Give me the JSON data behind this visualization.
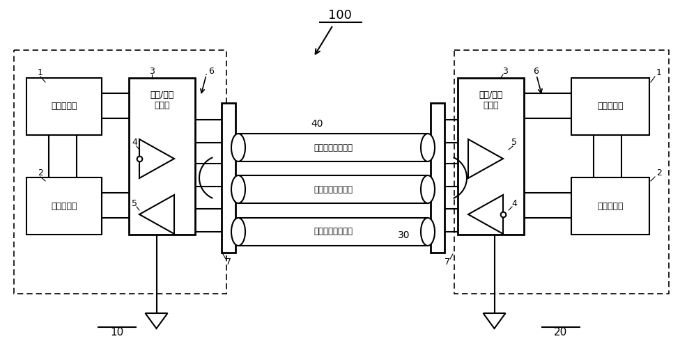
{
  "title": "100",
  "bg_color": "#ffffff",
  "label_10": "10",
  "label_20": "20",
  "label_40": "40",
  "label_30": "30",
  "label_1": "1",
  "label_2": "2",
  "label_3": "3",
  "label_4": "4",
  "label_5": "5",
  "label_6": "6",
  "label_7": "7",
  "box_power_left": "电源电路块",
  "box_func_left": "功能电路块",
  "box_io_left": "输入/输出\n电路块",
  "box_power_right": "电源电路块",
  "box_func_right": "功能电路块",
  "box_io_right": "输入/输出\n电路块",
  "cable1": "电源地对传输线路",
  "cable2": "差分信号传输线路",
  "cable3": "差分信号传输线路"
}
